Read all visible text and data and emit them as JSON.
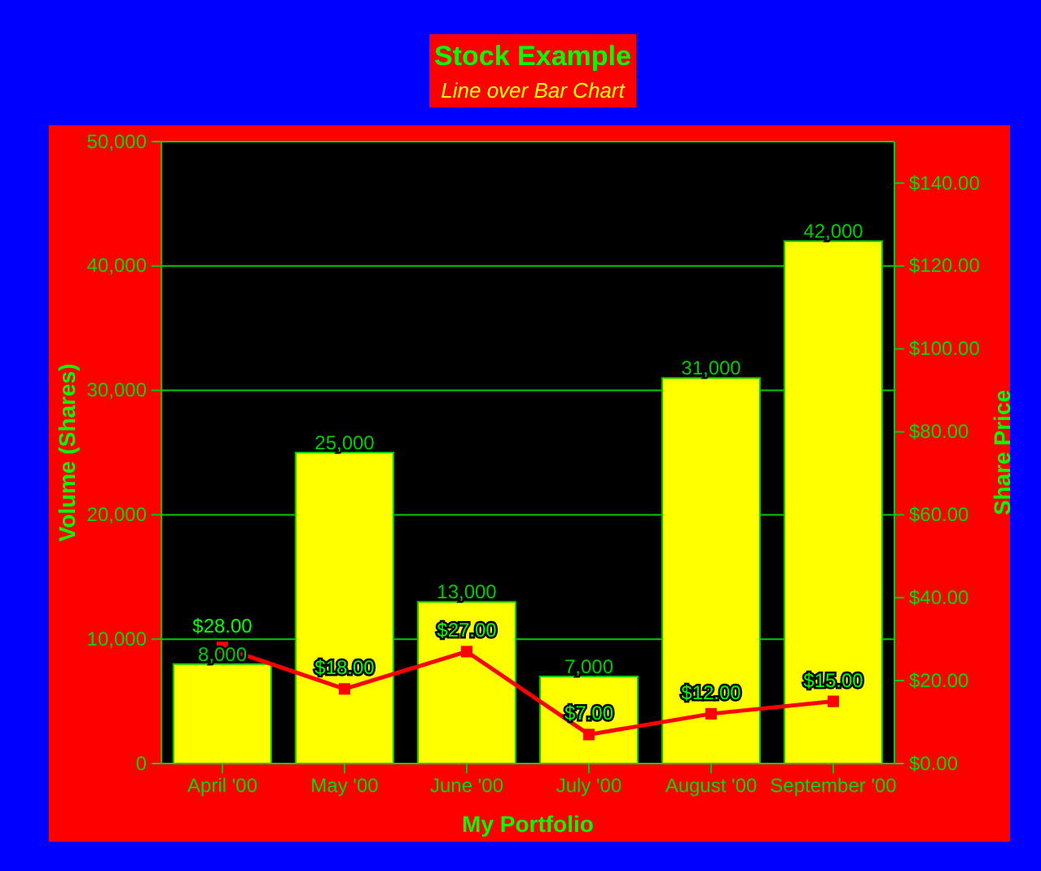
{
  "chart_data": {
    "type": "bar",
    "title": "Stock Example",
    "subtitle": "Line over Bar Chart",
    "xlabel": "My Portfolio",
    "ylabel": "Volume (Shares)",
    "y2label": "Share Price",
    "categories": [
      "April '00",
      "May '00",
      "June '00",
      "July '00",
      "August '00",
      "September '00"
    ],
    "series": [
      {
        "color": "#ffff00",
        "values": [
          8000,
          25000,
          13000,
          7000,
          31000,
          42000
        ],
        "value_labels": [
          "8,000",
          "25,000",
          "13,000",
          "7,000",
          "31,000",
          "42,000"
        ]
      },
      {
        "type": "line",
        "axis": "y2",
        "color": "#ff0000",
        "marker": "square",
        "values": [
          28,
          18,
          27,
          7,
          12,
          15
        ],
        "value_labels": [
          "$28.00",
          "$18.00",
          "$27.00",
          "$7.00",
          "$12.00",
          "$15.00"
        ]
      }
    ],
    "ylim": [
      0,
      50000
    ],
    "yticks": [
      {
        "value": 0,
        "label": "0"
      },
      {
        "value": 10000,
        "label": "10,000"
      },
      {
        "value": 20000,
        "label": "20,000"
      },
      {
        "value": 30000,
        "label": "30,000"
      },
      {
        "value": 40000,
        "label": "40,000"
      },
      {
        "value": 50000,
        "label": "50,000"
      }
    ],
    "y2lim": [
      0,
      150
    ],
    "y2ticks": [
      {
        "value": 0,
        "label": "$0.00"
      },
      {
        "value": 20,
        "label": "$20.00"
      },
      {
        "value": 40,
        "label": "$40.00"
      },
      {
        "value": 60,
        "label": "$60.00"
      },
      {
        "value": 80,
        "label": "$80.00"
      },
      {
        "value": 100,
        "label": "$100.00"
      },
      {
        "value": 120,
        "label": "$120.00"
      },
      {
        "value": 140,
        "label": "$140.00"
      }
    ],
    "grid": "y"
  }
}
